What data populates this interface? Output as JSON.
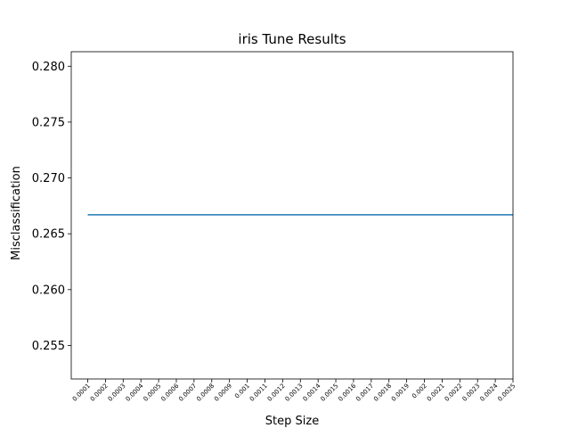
{
  "chart_data": {
    "type": "line",
    "title": "iris Tune Results",
    "xlabel": "Step Size",
    "ylabel": "Misclassification",
    "categories": [
      "0.0001",
      "0.0002",
      "0.0003",
      "0.0004",
      "0.0005",
      "0.0006",
      "0.0007",
      "0.0008",
      "0.0009",
      "0.001",
      "0.0011",
      "0.0012",
      "0.0013",
      "0.0014",
      "0.0015",
      "0.0016",
      "0.0017",
      "0.0018",
      "0.0019",
      "0.002",
      "0.0021",
      "0.0022",
      "0.0023",
      "0.0024",
      "0.0025"
    ],
    "series": [
      {
        "name": "misclassification",
        "color": "#1f77b4",
        "values": [
          0.2667,
          0.2667,
          0.2667,
          0.2667,
          0.2667,
          0.2667,
          0.2667,
          0.2667,
          0.2667,
          0.2667,
          0.2667,
          0.2667,
          0.2667,
          0.2667,
          0.2667,
          0.2667,
          0.2667,
          0.2667,
          0.2667,
          0.2667,
          0.2667,
          0.2667,
          0.2667,
          0.2667,
          0.2667
        ]
      }
    ],
    "ylim": [
      0.252,
      0.2813
    ],
    "yticks": [
      0.255,
      0.26,
      0.265,
      0.27,
      0.275,
      0.28
    ],
    "ytick_labels": [
      "0.255",
      "0.260",
      "0.265",
      "0.270",
      "0.275",
      "0.280"
    ],
    "grid": false,
    "legend": "none"
  }
}
